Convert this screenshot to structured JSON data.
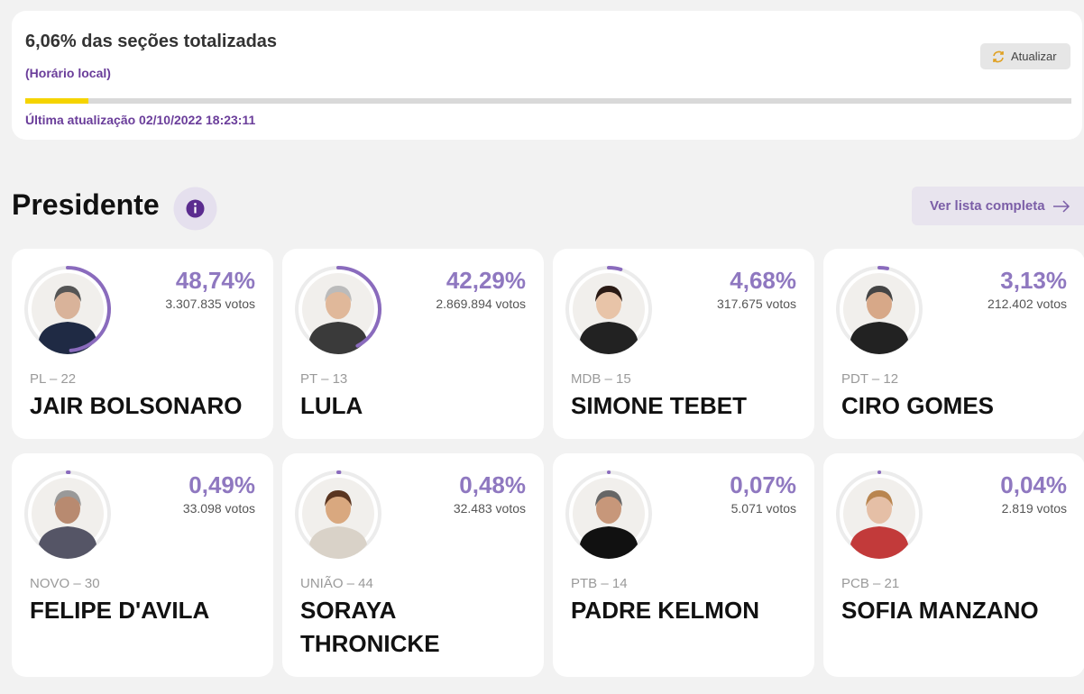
{
  "header": {
    "progress": {
      "value": 6.06,
      "label": "6,06% das seções totalizadas"
    },
    "timezone": "(Horário local)",
    "refresh_button": "Atualizar",
    "last_update": "Última atualização 02/10/2022 18:23:11"
  },
  "section": {
    "title": "Presidente",
    "full_list_button": "Ver lista completa"
  },
  "candidates": [
    {
      "party": "PL – 22",
      "name": "JAIR BOLSONARO",
      "percent": {
        "value": 48.74,
        "label": "48,74%"
      },
      "votes": "3.307.835 votos"
    },
    {
      "party": "PT – 13",
      "name": "LULA",
      "percent": {
        "value": 42.29,
        "label": "42,29%"
      },
      "votes": "2.869.894 votos"
    },
    {
      "party": "MDB – 15",
      "name": "SIMONE TEBET",
      "percent": {
        "value": 4.68,
        "label": "4,68%"
      },
      "votes": "317.675 votos"
    },
    {
      "party": "PDT – 12",
      "name": "CIRO GOMES",
      "percent": {
        "value": 3.13,
        "label": "3,13%"
      },
      "votes": "212.402 votos"
    },
    {
      "party": "NOVO – 30",
      "name": "FELIPE D'AVILA",
      "percent": {
        "value": 0.49,
        "label": "0,49%"
      },
      "votes": "33.098 votos"
    },
    {
      "party": "UNIÃO – 44",
      "name": "SORAYA THRONICKE",
      "percent": {
        "value": 0.48,
        "label": "0,48%"
      },
      "votes": "32.483 votos"
    },
    {
      "party": "PTB – 14",
      "name": "PADRE KELMON",
      "percent": {
        "value": 0.07,
        "label": "0,07%"
      },
      "votes": "5.071 votos"
    },
    {
      "party": "PCB – 21",
      "name": "SOFIA MANZANO",
      "percent": {
        "value": 0.04,
        "label": "0,04%"
      },
      "votes": "2.819 votos"
    }
  ]
}
